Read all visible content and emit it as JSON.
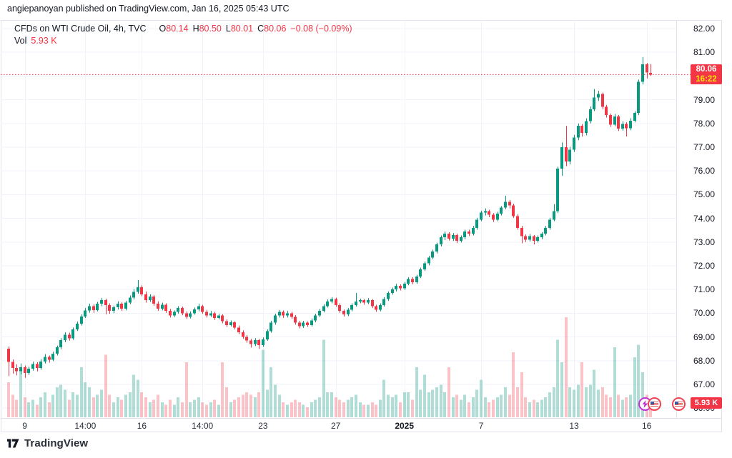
{
  "attribution": "angiepanoyan published on TradingView.com, Jan 16, 2025 05:43 UTC",
  "legend": {
    "title": "CFDs on WTI Crude Oil, 4h, TVC",
    "ohlc": [
      {
        "label": "O",
        "value": "80.14"
      },
      {
        "label": "H",
        "value": "80.50"
      },
      {
        "label": "L",
        "value": "80.01"
      },
      {
        "label": "C",
        "value": "80.06"
      }
    ],
    "change": "−0.08 (−0.09%)",
    "vol_label": "Vol",
    "vol_value": "5.93 K"
  },
  "last_price_label": {
    "value": "80.06",
    "countdown": "16:22"
  },
  "volume_axis_label": "5.93 K",
  "footer": {
    "logo_text": "TradingView"
  },
  "icons": {
    "event_purple": "economic-event-lightning",
    "event_flag_1": "us-economic-event-flag",
    "event_flag_2": "us-economic-event-flag"
  },
  "colors": {
    "up": "#089981",
    "down": "#f23645",
    "vol_up": "rgba(8,153,129,0.32)",
    "vol_down": "rgba(242,54,69,0.30)",
    "grid": "#f0f3fa",
    "frame": "#e0e3eb",
    "text": "#131722",
    "label_bg": "#f23645",
    "countdown_text": "#ffe70a"
  },
  "chart_data": {
    "type": "candlestick",
    "symbol": "CFDs on WTI Crude Oil",
    "timeframe": "4h",
    "exchange": "TVC",
    "visible_range": {
      "from": "Dec 9, 2024",
      "to": "Jan 16, 2025 05:43 UTC"
    },
    "grid": true,
    "legend_position": "top-left",
    "price_axis": {
      "side": "right",
      "min_visible": 66,
      "max_visible": 82,
      "tick_step": 1
    },
    "y_ticks": [
      82,
      81,
      80,
      79,
      78,
      77,
      76,
      75,
      74,
      73,
      72,
      71,
      70,
      69,
      68,
      67,
      66
    ],
    "time_ticks": [
      {
        "label": "9",
        "index": 4
      },
      {
        "label": "14:00",
        "index": 19
      },
      {
        "label": "16",
        "index": 33
      },
      {
        "label": "14:00",
        "index": 48
      },
      {
        "label": "23",
        "index": 63
      },
      {
        "label": "27",
        "index": 81
      },
      {
        "label": "2025",
        "index": 98,
        "bold": true
      },
      {
        "label": "7",
        "index": 117
      },
      {
        "label": "13",
        "index": 140
      },
      {
        "label": "16",
        "index": 158
      }
    ],
    "last_price": 80.06,
    "countdown": "16:22",
    "current_bar": {
      "open": 80.14,
      "high": 80.5,
      "low": 80.01,
      "close": 80.06,
      "volume_k": 5.93,
      "change": -0.08,
      "change_pct": -0.09
    },
    "volume_unit": "K",
    "candles": [
      [
        68.5,
        68.6,
        67.35,
        67.95,
        14
      ],
      [
        67.95,
        68.05,
        67.45,
        67.7,
        9
      ],
      [
        67.7,
        67.85,
        67.38,
        67.55,
        7
      ],
      [
        67.55,
        67.88,
        67.42,
        67.72,
        20
      ],
      [
        67.72,
        67.8,
        67.28,
        67.48,
        8
      ],
      [
        67.48,
        67.75,
        67.4,
        67.66,
        6
      ],
      [
        67.66,
        67.96,
        67.58,
        67.86,
        7
      ],
      [
        67.86,
        67.94,
        67.55,
        67.7,
        5
      ],
      [
        67.7,
        68.06,
        67.62,
        67.96,
        8
      ],
      [
        67.96,
        68.28,
        67.88,
        68.16,
        10
      ],
      [
        68.16,
        68.22,
        67.92,
        68.04,
        6
      ],
      [
        68.04,
        68.38,
        67.98,
        68.3,
        9
      ],
      [
        68.3,
        68.64,
        68.22,
        68.56,
        12
      ],
      [
        68.56,
        68.95,
        68.48,
        68.86,
        13
      ],
      [
        68.86,
        69.2,
        68.78,
        69.1,
        11
      ],
      [
        69.1,
        69.18,
        68.84,
        68.95,
        7
      ],
      [
        68.95,
        69.4,
        68.88,
        69.32,
        10
      ],
      [
        69.32,
        69.65,
        69.25,
        69.56,
        9
      ],
      [
        69.56,
        69.95,
        69.48,
        69.86,
        20
      ],
      [
        69.86,
        70.22,
        69.8,
        70.12,
        14
      ],
      [
        70.12,
        70.4,
        70.02,
        70.3,
        12
      ],
      [
        70.3,
        70.38,
        70.02,
        70.14,
        8
      ],
      [
        70.14,
        70.48,
        70.08,
        70.4,
        9
      ],
      [
        70.4,
        70.65,
        70.3,
        70.55,
        11
      ],
      [
        70.55,
        70.62,
        69.95,
        70.34,
        25
      ],
      [
        70.34,
        70.42,
        69.98,
        70.1,
        9
      ],
      [
        70.1,
        70.32,
        70.0,
        70.25,
        6
      ],
      [
        70.25,
        70.5,
        70.16,
        70.4,
        8
      ],
      [
        70.4,
        70.46,
        70.1,
        70.2,
        7
      ],
      [
        70.2,
        70.52,
        70.12,
        70.45,
        9
      ],
      [
        70.45,
        70.75,
        70.38,
        70.66,
        10
      ],
      [
        70.66,
        71.02,
        70.58,
        70.9,
        17
      ],
      [
        70.9,
        71.4,
        70.82,
        71.1,
        15
      ],
      [
        71.1,
        71.18,
        70.72,
        70.8,
        10
      ],
      [
        70.8,
        70.92,
        70.45,
        70.55,
        8
      ],
      [
        70.55,
        70.8,
        70.48,
        70.7,
        6
      ],
      [
        70.7,
        70.76,
        70.32,
        70.4,
        7
      ],
      [
        70.4,
        70.5,
        70.1,
        70.2,
        9
      ],
      [
        70.2,
        70.45,
        70.12,
        70.36,
        6
      ],
      [
        70.36,
        70.42,
        70.02,
        70.1,
        5
      ],
      [
        70.1,
        70.18,
        69.82,
        69.9,
        7
      ],
      [
        69.9,
        70.12,
        69.84,
        70.05,
        5
      ],
      [
        70.05,
        70.3,
        69.98,
        70.22,
        8
      ],
      [
        70.22,
        70.28,
        69.92,
        70.0,
        6
      ],
      [
        70.0,
        70.08,
        69.76,
        69.85,
        22
      ],
      [
        69.85,
        70.08,
        69.78,
        70.0,
        6
      ],
      [
        70.0,
        70.24,
        69.94,
        70.16,
        7
      ],
      [
        70.16,
        70.4,
        70.08,
        70.3,
        8
      ],
      [
        70.3,
        70.36,
        69.98,
        70.06,
        6
      ],
      [
        70.06,
        70.14,
        69.82,
        69.9,
        5
      ],
      [
        69.9,
        70.1,
        69.84,
        70.0,
        6
      ],
      [
        70.0,
        70.06,
        69.72,
        69.8,
        7
      ],
      [
        69.8,
        69.98,
        69.74,
        69.9,
        5
      ],
      [
        69.9,
        69.96,
        69.58,
        69.66,
        22
      ],
      [
        69.66,
        69.74,
        69.42,
        69.5,
        12
      ],
      [
        69.5,
        69.7,
        69.44,
        69.62,
        6
      ],
      [
        69.62,
        69.66,
        69.32,
        69.4,
        7
      ],
      [
        69.4,
        69.48,
        69.12,
        69.2,
        8
      ],
      [
        69.2,
        69.28,
        68.92,
        69.0,
        9
      ],
      [
        69.0,
        69.08,
        68.76,
        68.85,
        10
      ],
      [
        68.85,
        68.92,
        68.55,
        68.7,
        9
      ],
      [
        68.7,
        68.95,
        68.62,
        68.86,
        8
      ],
      [
        68.86,
        68.92,
        68.5,
        68.66,
        10
      ],
      [
        68.66,
        68.98,
        68.58,
        68.9,
        27
      ],
      [
        68.9,
        69.32,
        68.84,
        69.25,
        11
      ],
      [
        69.25,
        69.68,
        69.18,
        69.6,
        20
      ],
      [
        69.6,
        69.98,
        69.52,
        69.9,
        13
      ],
      [
        69.9,
        70.14,
        69.82,
        70.05,
        9
      ],
      [
        70.05,
        70.12,
        69.8,
        69.9,
        6
      ],
      [
        69.9,
        70.1,
        69.82,
        70.0,
        5
      ],
      [
        70.0,
        70.06,
        69.76,
        69.85,
        6
      ],
      [
        69.85,
        69.92,
        69.52,
        69.6,
        7
      ],
      [
        69.6,
        69.68,
        69.36,
        69.45,
        6
      ],
      [
        69.45,
        69.68,
        69.38,
        69.6,
        5
      ],
      [
        69.6,
        69.66,
        69.42,
        69.5,
        4
      ],
      [
        69.5,
        69.78,
        69.44,
        69.7,
        6
      ],
      [
        69.7,
        69.98,
        69.62,
        69.9,
        7
      ],
      [
        69.9,
        70.18,
        69.84,
        70.1,
        8
      ],
      [
        70.1,
        70.38,
        70.04,
        70.3,
        31
      ],
      [
        70.3,
        70.58,
        70.24,
        70.5,
        10
      ],
      [
        70.5,
        70.68,
        70.42,
        70.6,
        10
      ],
      [
        70.6,
        70.66,
        70.28,
        70.35,
        8
      ],
      [
        70.35,
        70.42,
        70.02,
        70.1,
        7
      ],
      [
        70.1,
        70.16,
        69.86,
        69.95,
        6
      ],
      [
        69.95,
        70.22,
        69.88,
        70.15,
        7
      ],
      [
        70.15,
        70.42,
        70.08,
        70.35,
        8
      ],
      [
        70.35,
        70.85,
        70.28,
        70.5,
        9
      ],
      [
        70.5,
        70.62,
        70.42,
        70.55,
        6
      ],
      [
        70.55,
        70.6,
        70.36,
        70.45,
        5
      ],
      [
        70.45,
        70.64,
        70.38,
        70.55,
        5
      ],
      [
        70.55,
        70.6,
        70.22,
        70.3,
        6
      ],
      [
        70.3,
        70.36,
        70.06,
        70.15,
        5
      ],
      [
        70.15,
        70.42,
        70.08,
        70.35,
        7
      ],
      [
        70.35,
        70.68,
        70.28,
        70.6,
        15
      ],
      [
        70.6,
        70.92,
        70.52,
        70.85,
        9
      ],
      [
        70.85,
        71.08,
        70.78,
        71.0,
        8
      ],
      [
        71.0,
        71.24,
        70.92,
        71.15,
        9
      ],
      [
        71.15,
        71.22,
        70.96,
        71.05,
        6
      ],
      [
        71.05,
        71.32,
        70.98,
        71.25,
        10
      ],
      [
        71.25,
        71.52,
        71.18,
        71.45,
        10
      ],
      [
        71.45,
        71.52,
        71.22,
        71.3,
        7
      ],
      [
        71.3,
        71.62,
        71.24,
        71.55,
        20
      ],
      [
        71.55,
        71.92,
        71.48,
        71.85,
        11
      ],
      [
        71.85,
        72.18,
        71.78,
        72.1,
        17
      ],
      [
        72.1,
        72.42,
        72.02,
        72.35,
        10
      ],
      [
        72.35,
        72.68,
        72.28,
        72.6,
        11
      ],
      [
        72.6,
        72.98,
        72.52,
        72.9,
        12
      ],
      [
        72.9,
        73.28,
        72.82,
        73.2,
        13
      ],
      [
        73.2,
        73.45,
        73.08,
        73.35,
        10
      ],
      [
        73.35,
        73.42,
        73.06,
        73.15,
        20
      ],
      [
        73.15,
        73.38,
        73.05,
        73.3,
        8
      ],
      [
        73.3,
        73.36,
        72.96,
        73.05,
        9
      ],
      [
        73.05,
        73.28,
        72.98,
        73.2,
        7
      ],
      [
        73.2,
        73.52,
        73.12,
        73.45,
        9
      ],
      [
        73.45,
        73.52,
        73.25,
        73.35,
        6
      ],
      [
        73.35,
        73.68,
        73.28,
        73.6,
        8
      ],
      [
        73.6,
        74.02,
        73.52,
        73.95,
        11
      ],
      [
        73.95,
        74.32,
        73.88,
        74.25,
        15
      ],
      [
        74.25,
        74.42,
        74.12,
        74.3,
        8
      ],
      [
        74.3,
        74.36,
        74.05,
        74.15,
        6
      ],
      [
        74.15,
        74.22,
        73.85,
        73.95,
        7
      ],
      [
        73.95,
        74.28,
        73.88,
        74.2,
        8
      ],
      [
        74.2,
        74.52,
        74.12,
        74.45,
        9
      ],
      [
        74.45,
        74.95,
        74.38,
        74.7,
        12
      ],
      [
        74.7,
        74.78,
        74.42,
        74.55,
        9
      ],
      [
        74.55,
        74.62,
        74.02,
        74.1,
        26
      ],
      [
        74.1,
        74.18,
        73.52,
        73.6,
        12
      ],
      [
        73.6,
        73.68,
        72.95,
        73.25,
        18
      ],
      [
        73.25,
        73.32,
        73.0,
        73.1,
        8
      ],
      [
        73.1,
        73.34,
        73.02,
        73.25,
        6
      ],
      [
        73.25,
        73.3,
        72.9,
        73.05,
        7
      ],
      [
        73.05,
        73.28,
        72.98,
        73.2,
        6
      ],
      [
        73.2,
        73.42,
        73.12,
        73.35,
        7
      ],
      [
        73.35,
        73.68,
        73.28,
        73.6,
        8
      ],
      [
        73.6,
        74.02,
        73.52,
        73.95,
        10
      ],
      [
        73.95,
        74.6,
        73.88,
        74.3,
        12
      ],
      [
        74.3,
        76.18,
        74.22,
        76.1,
        31
      ],
      [
        76.1,
        77.2,
        75.8,
        77.0,
        22
      ],
      [
        77.0,
        77.9,
        76.2,
        76.4,
        40
      ],
      [
        76.4,
        77.02,
        76.28,
        76.9,
        12
      ],
      [
        76.9,
        77.52,
        76.8,
        77.4,
        11
      ],
      [
        77.4,
        78.0,
        77.3,
        77.9,
        13
      ],
      [
        77.9,
        77.98,
        77.45,
        77.6,
        22
      ],
      [
        77.6,
        78.22,
        77.5,
        78.1,
        12
      ],
      [
        78.1,
        78.72,
        78.0,
        78.6,
        13
      ],
      [
        78.6,
        79.45,
        78.52,
        79.1,
        19
      ],
      [
        79.1,
        79.38,
        78.95,
        79.25,
        11
      ],
      [
        79.25,
        79.3,
        78.6,
        78.7,
        12
      ],
      [
        78.7,
        78.78,
        78.25,
        78.35,
        9
      ],
      [
        78.35,
        78.42,
        77.85,
        77.95,
        8
      ],
      [
        77.95,
        78.4,
        77.88,
        78.3,
        28
      ],
      [
        78.3,
        78.36,
        77.68,
        77.78,
        9
      ],
      [
        77.78,
        78.1,
        77.7,
        77.98,
        7
      ],
      [
        77.98,
        78.05,
        77.45,
        77.8,
        8
      ],
      [
        77.8,
        78.22,
        77.72,
        78.12,
        9
      ],
      [
        78.12,
        78.52,
        78.05,
        78.45,
        24
      ],
      [
        78.45,
        79.85,
        78.35,
        79.75,
        29
      ],
      [
        79.75,
        80.8,
        79.65,
        80.5,
        18
      ],
      [
        80.5,
        80.55,
        79.9,
        80.15,
        9
      ],
      [
        80.14,
        80.5,
        80.01,
        80.06,
        5.93
      ]
    ]
  }
}
